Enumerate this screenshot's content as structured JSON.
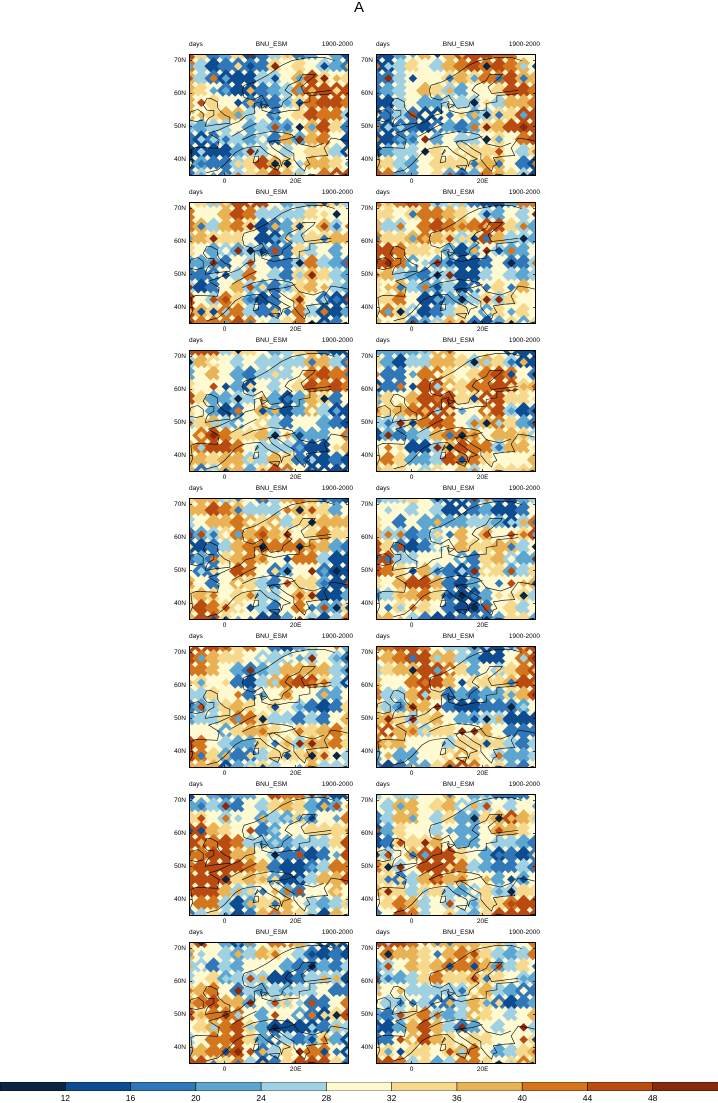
{
  "figure": {
    "title": "A"
  },
  "panel_header": {
    "left": "days",
    "center": "BNU_ESM",
    "right": "1900-2000"
  },
  "chart_data": {
    "type": "heatmap",
    "title": "A",
    "panel_count": 14,
    "layout": "7 rows x 2 columns",
    "panel_labels": [
      "days",
      "BNU_ESM",
      "1900-2000"
    ],
    "x_axis": {
      "tick_labels": [
        "0",
        "20E"
      ],
      "tick_values_deg_lon": [
        0,
        20
      ],
      "range_deg_lon": [
        -10,
        35
      ]
    },
    "y_axis": {
      "tick_labels": [
        "40N",
        "50N",
        "60N",
        "70N"
      ],
      "tick_values_deg_lat": [
        40,
        50,
        60,
        70
      ],
      "range_deg_lat": [
        35,
        72
      ]
    },
    "colorbar": {
      "levels": [
        12,
        16,
        20,
        24,
        28,
        32,
        36,
        40,
        44,
        48
      ],
      "labels": [
        "12",
        "16",
        "20",
        "24",
        "28",
        "32",
        "36",
        "40",
        "44",
        "48"
      ],
      "colors": [
        "#0b2545",
        "#0e4c92",
        "#2f77b8",
        "#5ca6d1",
        "#9fd1e3",
        "#fffad2",
        "#f7d98d",
        "#e9b355",
        "#d4761e",
        "#b94b10",
        "#8a2a0d"
      ],
      "position": "bottom"
    },
    "coastline_color": "#000000"
  }
}
